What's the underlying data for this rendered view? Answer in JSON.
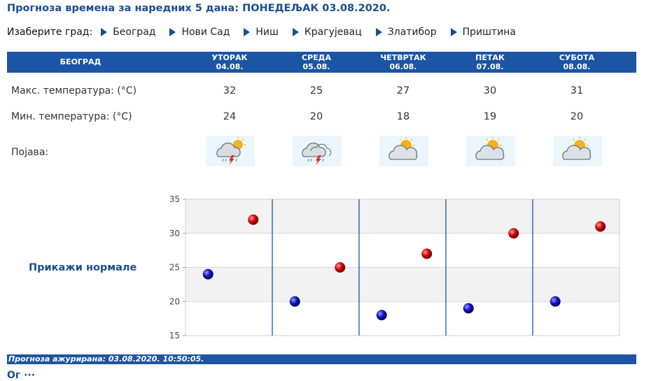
{
  "header": {
    "title": "Прогноза времена за наредних 5 дана: ПОНЕДЕЉАК  03.08.2020."
  },
  "city_select": {
    "label": "Изаберите град:",
    "cities": [
      "Београд",
      "Нови Сад",
      "Ниш",
      "Крагујевац",
      "Златибор",
      "Приштина"
    ]
  },
  "table": {
    "city": "БЕОГРАД",
    "days": [
      {
        "name": "УТОРАК",
        "date": "04.08.",
        "max": "32",
        "min": "24",
        "icon": "storm-icon"
      },
      {
        "name": "СРЕДА",
        "date": "05.08.",
        "max": "25",
        "min": "20",
        "icon": "storm-icon"
      },
      {
        "name": "ЧЕТВРТАК",
        "date": "06.08.",
        "max": "27",
        "min": "18",
        "icon": "partly-cloudy-icon"
      },
      {
        "name": "ПЕТАК",
        "date": "07.08.",
        "max": "30",
        "min": "19",
        "icon": "partly-cloudy-icon"
      },
      {
        "name": "СУБОТА",
        "date": "08.08.",
        "max": "31",
        "min": "20",
        "icon": "partly-cloudy-icon"
      }
    ],
    "max_label": "Макс. температура: (°C)",
    "min_label": "Мин. температура: (°C)",
    "phenomenon_label": "Појава:"
  },
  "normals_link": "Прикажи нормале",
  "chart_data": {
    "type": "scatter",
    "ylim": [
      15,
      35
    ],
    "yticks": [
      "35",
      "30",
      "25",
      "20",
      "15"
    ],
    "grid": true,
    "series": [
      {
        "values": [
          32,
          25,
          27,
          30,
          31
        ],
        "color": "#cc0000"
      },
      {
        "values": [
          24,
          20,
          18,
          19,
          20
        ],
        "color": "#1010b8"
      }
    ]
  },
  "footer": {
    "updated": "Прогноза ажурирана:  03.08.2020. 10:50:05."
  },
  "colors": {
    "accent": "#1c55a3",
    "title": "#1b4e8f"
  }
}
